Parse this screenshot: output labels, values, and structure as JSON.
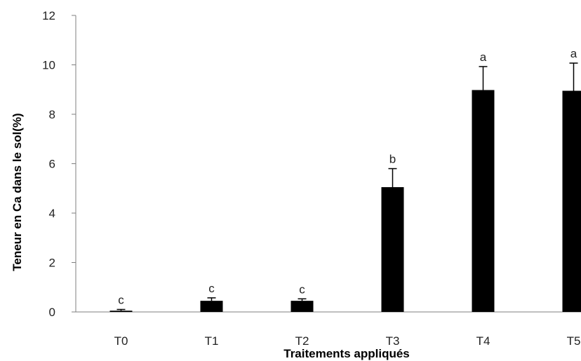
{
  "chart_data": {
    "type": "bar",
    "title": "",
    "xlabel": "Traitements appliqués",
    "ylabel": "Teneur en Ca dans le sol(%)",
    "categories": [
      "T0",
      "T1",
      "T2",
      "T3",
      "T4",
      "T5"
    ],
    "values": [
      0.05,
      0.45,
      0.45,
      5.05,
      8.98,
      8.95
    ],
    "error": [
      0.05,
      0.12,
      0.08,
      0.75,
      0.95,
      1.12
    ],
    "significance": [
      "c",
      "c",
      "c",
      "b",
      "a",
      "a"
    ],
    "ylim": [
      0,
      12
    ],
    "yticks": [
      0,
      2,
      4,
      6,
      8,
      10,
      12
    ],
    "grid": false,
    "legend": "none",
    "bar_color": "#000000"
  }
}
